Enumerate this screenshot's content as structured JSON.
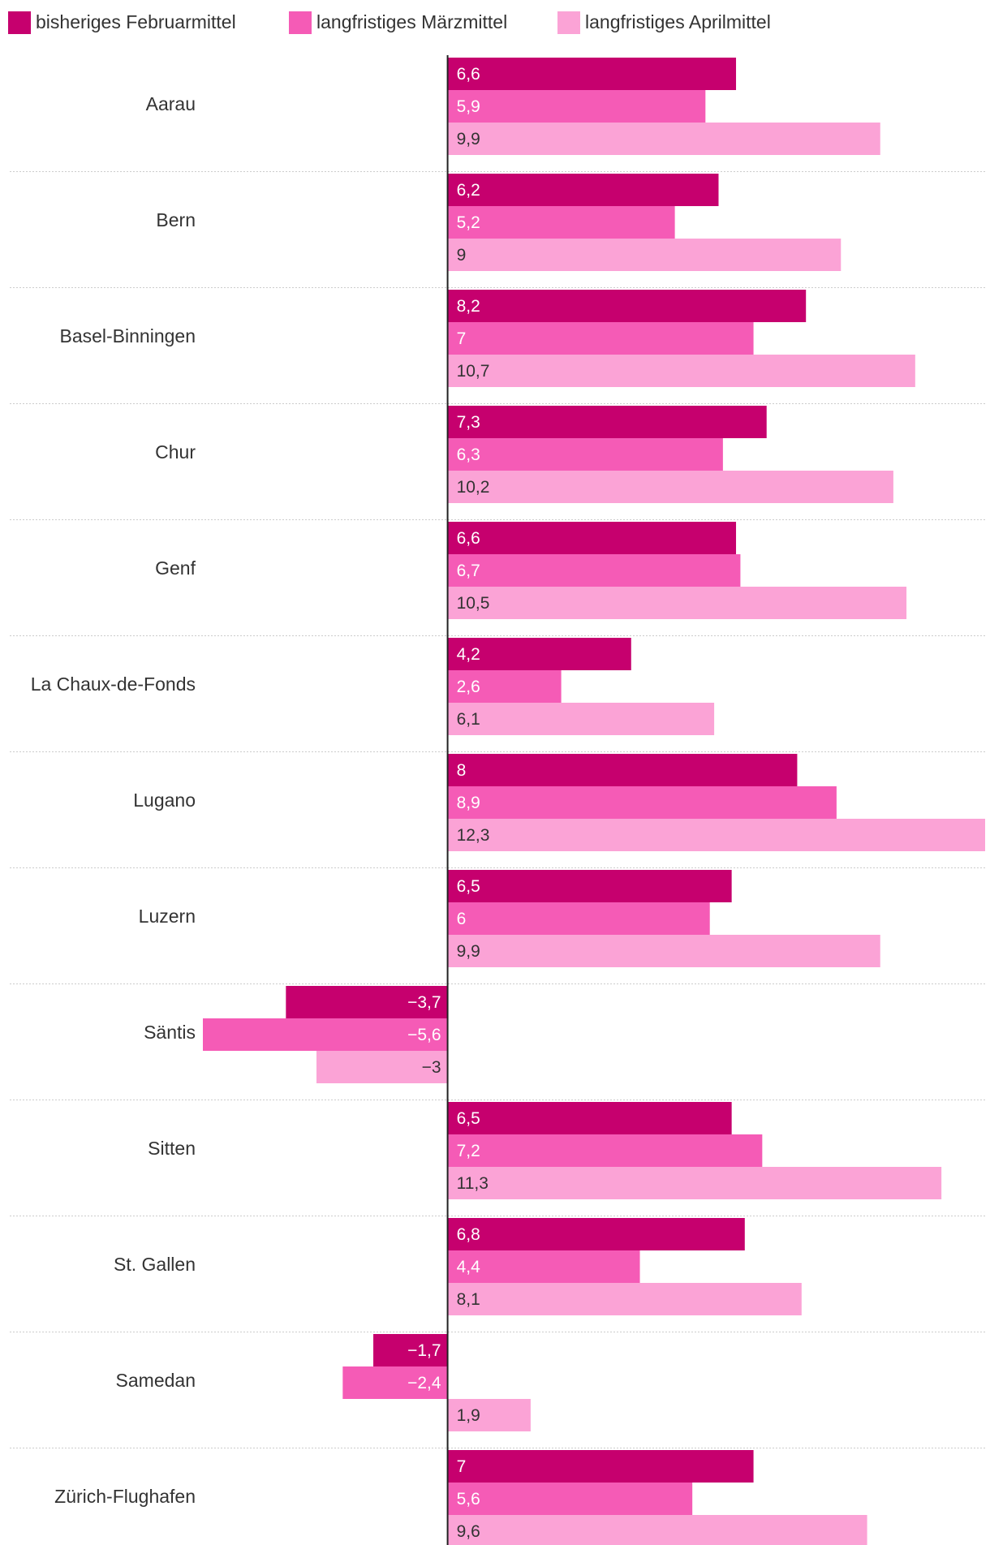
{
  "chart_data": {
    "type": "bar",
    "orientation": "horizontal",
    "categories": [
      "Aarau",
      "Bern",
      "Basel-Binningen",
      "Chur",
      "Genf",
      "La Chaux-de-Fonds",
      "Lugano",
      "Luzern",
      "Säntis",
      "Sitten",
      "St. Gallen",
      "Samedan",
      "Zürich-Flughafen"
    ],
    "series": [
      {
        "name": "bisheriges Februarmittel",
        "color": "#c6006e",
        "label_color": "#ffffff",
        "values": [
          6.6,
          6.2,
          8.2,
          7.3,
          6.6,
          4.2,
          8,
          6.5,
          -3.7,
          6.5,
          6.8,
          -1.7,
          7
        ],
        "labels": [
          "6,6",
          "6,2",
          "8,2",
          "7,3",
          "6,6",
          "4,2",
          "8",
          "6,5",
          "−3,7",
          "6,5",
          "6,8",
          "−1,7",
          "7"
        ]
      },
      {
        "name": "langfristiges Märzmittel",
        "color": "#f55bb6",
        "label_color": "#ffffff",
        "values": [
          5.9,
          5.2,
          7,
          6.3,
          6.7,
          2.6,
          8.9,
          6,
          -5.6,
          7.2,
          4.4,
          -2.4,
          5.6
        ],
        "labels": [
          "5,9",
          "5,2",
          "7",
          "6,3",
          "6,7",
          "2,6",
          "8,9",
          "6",
          "−5,6",
          "7,2",
          "4,4",
          "−2,4",
          "5,6"
        ]
      },
      {
        "name": "langfristiges Aprilmittel",
        "color": "#fba3d6",
        "label_color": "#333333",
        "values": [
          9.9,
          9,
          10.7,
          10.2,
          10.5,
          6.1,
          12.3,
          9.9,
          -3,
          11.3,
          8.1,
          1.9,
          9.6
        ],
        "labels": [
          "9,9",
          "9",
          "10,7",
          "10,2",
          "10,5",
          "6,1",
          "12,3",
          "9,9",
          "−3",
          "11,3",
          "8,1",
          "1,9",
          "9,6"
        ]
      }
    ],
    "xlim": [
      -5.6,
      12.3
    ],
    "title": "",
    "xlabel": "",
    "ylabel": "",
    "legend": "top-left",
    "grid": false
  }
}
